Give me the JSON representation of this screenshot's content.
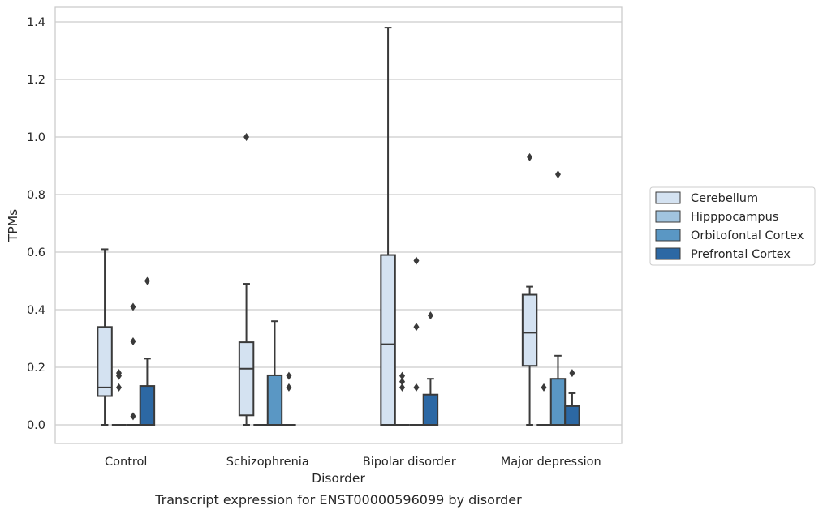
{
  "chart_data": {
    "type": "box",
    "caption": "Transcript expression for ENST00000596099 by disorder",
    "xlabel": "Disorder",
    "ylabel": "TPMs",
    "ylim": [
      -0.066,
      1.45
    ],
    "yticks": [
      "0.0",
      "0.2",
      "0.4",
      "0.6",
      "0.8",
      "1.0",
      "1.2",
      "1.4"
    ],
    "grid": "horizontal",
    "legend_position": "right",
    "categories": [
      "Control",
      "Schizophrenia",
      "Bipolar disorder",
      "Major depression"
    ],
    "series": [
      {
        "name": "Cerebellum",
        "color": "#d4e2f1",
        "boxes": [
          {
            "whisker_low": 0.0,
            "q1": 0.1,
            "median": 0.13,
            "q3": 0.34,
            "whisker_high": 0.61,
            "outliers": []
          },
          {
            "whisker_low": 0.0,
            "q1": 0.033,
            "median": 0.195,
            "q3": 0.287,
            "whisker_high": 0.49,
            "outliers": [
              1.0
            ]
          },
          {
            "whisker_low": 0.0,
            "q1": 0.0,
            "median": 0.28,
            "q3": 0.59,
            "whisker_high": 1.38,
            "outliers": []
          },
          {
            "whisker_low": 0.0,
            "q1": 0.205,
            "median": 0.32,
            "q3": 0.452,
            "whisker_high": 0.48,
            "outliers": [
              0.93
            ]
          }
        ]
      },
      {
        "name": "Hipppocampus",
        "color": "#a1c4df",
        "boxes": [
          {
            "whisker_low": 0.0,
            "q1": 0.0,
            "median": 0.0,
            "q3": 0.0,
            "whisker_high": 0.0,
            "outliers": [
              0.18,
              0.17,
              0.13
            ]
          },
          {
            "whisker_low": 0.0,
            "q1": 0.0,
            "median": 0.0,
            "q3": 0.0,
            "whisker_high": 0.0,
            "outliers": []
          },
          {
            "whisker_low": 0.0,
            "q1": 0.0,
            "median": 0.0,
            "q3": 0.0,
            "whisker_high": 0.0,
            "outliers": [
              0.17,
              0.15,
              0.13
            ]
          },
          {
            "whisker_low": 0.0,
            "q1": 0.0,
            "median": 0.0,
            "q3": 0.0,
            "whisker_high": 0.0,
            "outliers": [
              0.13
            ]
          }
        ]
      },
      {
        "name": "Orbitofontal Cortex",
        "color": "#5a97c4",
        "boxes": [
          {
            "whisker_low": 0.0,
            "q1": 0.0,
            "median": 0.0,
            "q3": 0.0,
            "whisker_high": 0.0,
            "outliers": [
              0.41,
              0.29,
              0.03
            ]
          },
          {
            "whisker_low": 0.0,
            "q1": 0.0,
            "median": 0.0,
            "q3": 0.172,
            "whisker_high": 0.36,
            "outliers": []
          },
          {
            "whisker_low": 0.0,
            "q1": 0.0,
            "median": 0.0,
            "q3": 0.0,
            "whisker_high": 0.0,
            "outliers": [
              0.57,
              0.34,
              0.13
            ]
          },
          {
            "whisker_low": 0.0,
            "q1": 0.0,
            "median": 0.0,
            "q3": 0.16,
            "whisker_high": 0.24,
            "outliers": [
              0.87
            ]
          }
        ]
      },
      {
        "name": "Prefrontal Cortex",
        "color": "#2c68a4",
        "boxes": [
          {
            "whisker_low": 0.0,
            "q1": 0.0,
            "median": 0.0,
            "q3": 0.135,
            "whisker_high": 0.23,
            "outliers": [
              0.5
            ]
          },
          {
            "whisker_low": 0.0,
            "q1": 0.0,
            "median": 0.0,
            "q3": 0.0,
            "whisker_high": 0.0,
            "outliers": [
              0.17,
              0.13
            ]
          },
          {
            "whisker_low": 0.0,
            "q1": 0.0,
            "median": 0.0,
            "q3": 0.105,
            "whisker_high": 0.16,
            "outliers": [
              0.38
            ]
          },
          {
            "whisker_low": 0.0,
            "q1": 0.0,
            "median": 0.0,
            "q3": 0.065,
            "whisker_high": 0.11,
            "outliers": [
              0.18
            ]
          }
        ]
      }
    ]
  }
}
